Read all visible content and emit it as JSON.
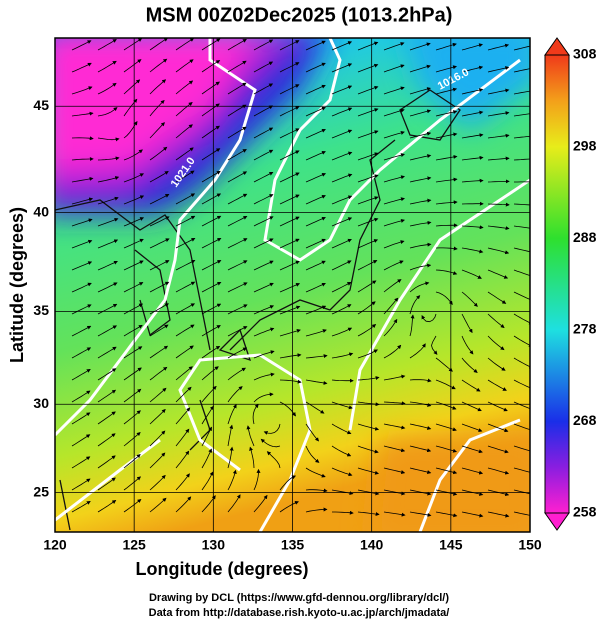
{
  "title": "MSM 00Z02Dec2025 (1013.2hPa)",
  "x_axis": {
    "label": "Longitude (degrees)",
    "lim": [
      120,
      150
    ],
    "ticks": [
      120,
      125,
      130,
      135,
      140,
      145,
      150
    ]
  },
  "y_axis": {
    "label": "Latitude  (degrees)",
    "lim": [
      22.7,
      48
    ],
    "ticks": [
      25,
      30,
      35,
      40,
      45
    ]
  },
  "colorbar": {
    "lim": [
      258,
      308
    ],
    "ticks": [
      258,
      268,
      278,
      288,
      298,
      308
    ]
  },
  "contour_labels": [
    "1021.0",
    "1016.0"
  ],
  "credits": [
    "Drawing by DCL (https://www.gfd-dennou.org/library/dcl/)",
    "Data from http://database.rish.kyoto-u.ac.jp/arch/jmadata/"
  ]
}
